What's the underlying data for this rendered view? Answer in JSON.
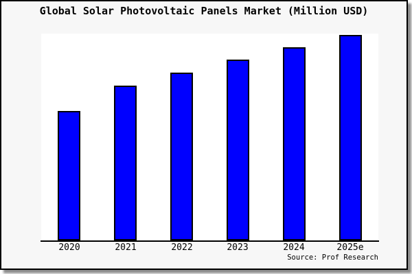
{
  "title": "Global Solar Photovoltaic Panels Market (Million USD)",
  "source_note": "Source: Prof Research",
  "colors": {
    "card_background": "#f7f7f7",
    "plot_background": "#ffffff",
    "bar_fill": "#0000ff",
    "bar_edge": "#000000",
    "axis_line": "#000000",
    "text": "#000000",
    "card_border": "#000000"
  },
  "chart_data": {
    "type": "bar",
    "title": "Global Solar Photovoltaic Panels Market (Million USD)",
    "categories": [
      "2020",
      "2021",
      "2022",
      "2023",
      "2024",
      "2025e"
    ],
    "values": [
      62.8,
      75.1,
      81.4,
      87.7,
      93.7,
      99.7
    ],
    "value_units": "relative index (no y-axis tick labels shown; 2025e bar ≈ 100)",
    "xlabel": "",
    "ylabel": "",
    "ylim": [
      0,
      100.3
    ],
    "xlim_units": [
      -0.5,
      5.5
    ],
    "bar_width_fraction": 0.4,
    "grid": false,
    "legend": false,
    "y_axis_labels_visible": false,
    "source_note": "Source: Prof Research"
  }
}
